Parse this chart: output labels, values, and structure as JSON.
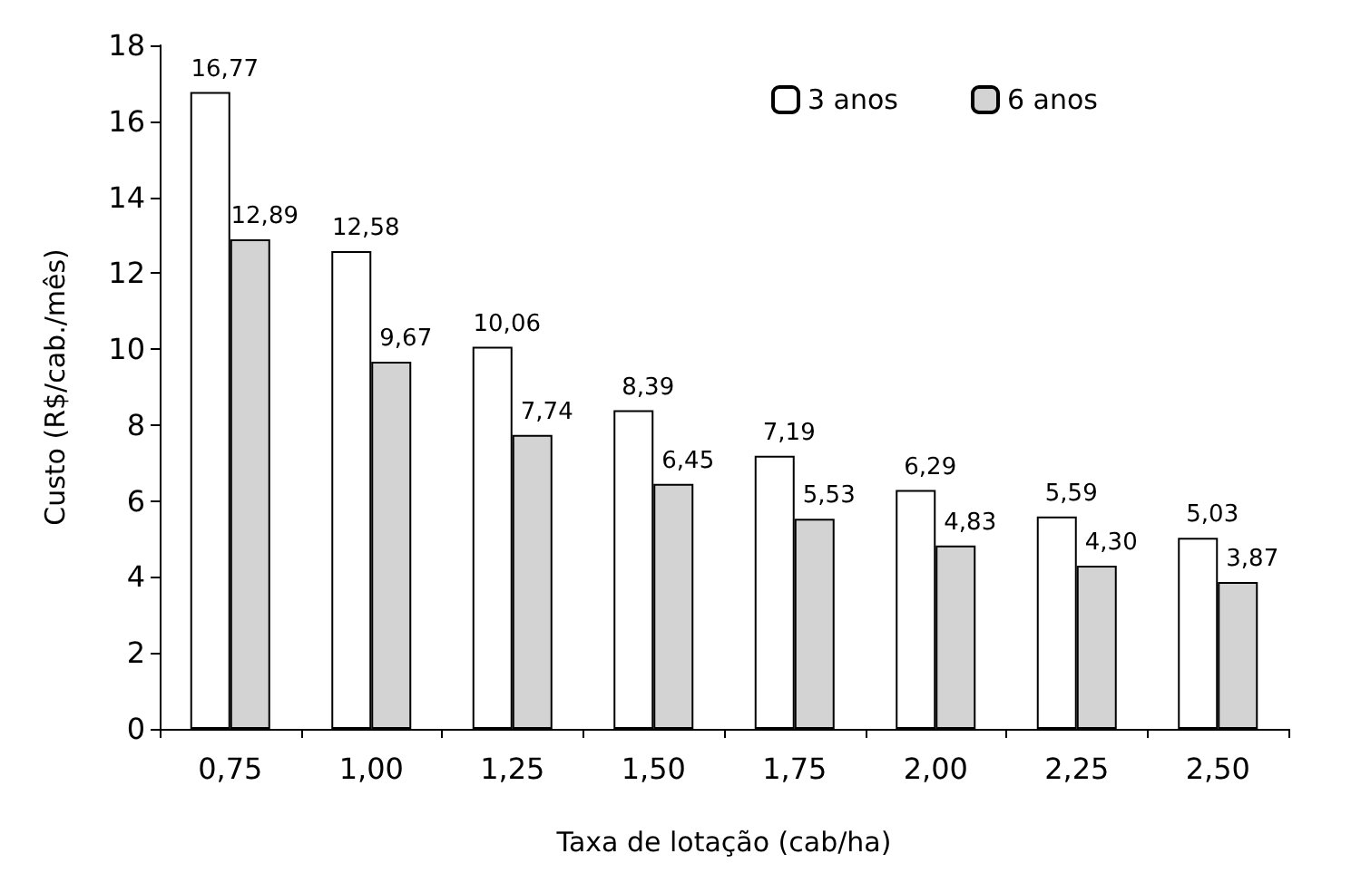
{
  "chart_data": {
    "type": "bar",
    "xlabel": "Taxa de lotação (cab/ha)",
    "ylabel": "Custo (R$/cab./mês)",
    "categories": [
      "0,75",
      "1,00",
      "1,25",
      "1,50",
      "1,75",
      "2,00",
      "2,25",
      "2,50"
    ],
    "series": [
      {
        "name": "3 anos",
        "color": "#ffffff",
        "values": [
          16.77,
          12.58,
          10.06,
          8.39,
          7.19,
          6.29,
          5.59,
          5.03
        ],
        "value_labels": [
          "16,77",
          "12,58",
          "10,06",
          "8,39",
          "7,19",
          "6,29",
          "5,59",
          "5,03"
        ]
      },
      {
        "name": "6 anos",
        "color": "#d3d3d3",
        "values": [
          12.89,
          9.67,
          7.74,
          6.45,
          5.53,
          4.83,
          4.3,
          3.87
        ],
        "value_labels": [
          "12,89",
          "9,67",
          "7,74",
          "6,45",
          "5,53",
          "4,83",
          "4,30",
          "3,87"
        ]
      }
    ],
    "ylim": [
      0,
      18
    ],
    "yticks": [
      0,
      2,
      4,
      6,
      8,
      10,
      12,
      14,
      16,
      18
    ],
    "grid": false,
    "legend": "top right"
  }
}
